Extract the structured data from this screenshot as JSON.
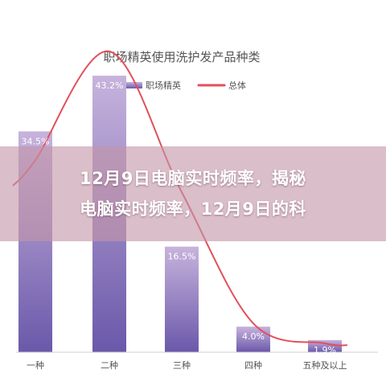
{
  "chart_data": {
    "type": "bar",
    "title": "职场精英使用洗护发产品种类",
    "categories": [
      "一种",
      "二种",
      "三种",
      "四种",
      "五种及以上"
    ],
    "series": [
      {
        "name": "职场精英",
        "type": "bar",
        "values": [
          34.5,
          43.2,
          16.5,
          4.0,
          1.9
        ],
        "labels": [
          "34.5%",
          "43.2%",
          "16.5%",
          "4.0%",
          "1.9%"
        ]
      },
      {
        "name": "总体",
        "type": "line",
        "values": [
          30.0,
          47.0,
          25.0,
          4.5,
          1.4
        ]
      }
    ],
    "ylim": [
      0,
      50
    ],
    "grid": false,
    "legend": "top",
    "colors": {
      "bar_top": "#c7b3dc",
      "bar_bottom": "#6a58aa",
      "line": "#e34f5c",
      "axis": "#cfcfcf",
      "title": "#555555",
      "label": "#555555"
    }
  },
  "banner": {
    "line1": "12月9日电脑实时频率，揭秘",
    "line2": "电脑实时频率，12月9日的科"
  }
}
